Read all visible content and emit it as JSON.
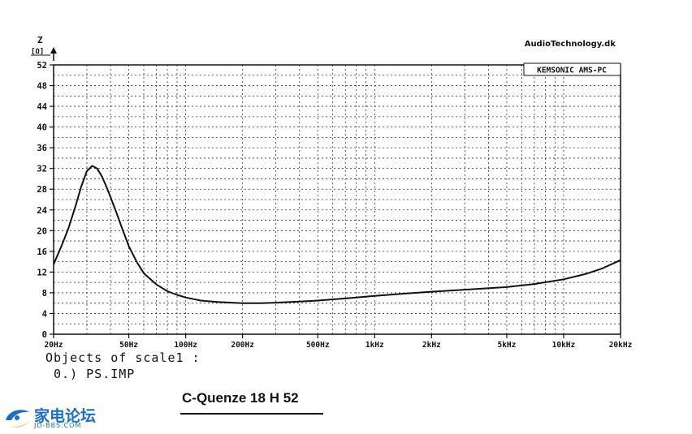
{
  "header": {
    "brand": "AudioTechnology.dk",
    "software_label": "KEMSONIC AMS-PC"
  },
  "chart_data": {
    "type": "line",
    "ylabel": "Z",
    "yunit": "[Ω]",
    "x_scale": "log",
    "xlim": [
      20,
      20000
    ],
    "ylim": [
      0,
      52
    ],
    "grid": true,
    "y_ticks": [
      0,
      4,
      8,
      12,
      16,
      20,
      24,
      28,
      32,
      36,
      40,
      44,
      48,
      52
    ],
    "x_tick_values": [
      20,
      50,
      100,
      200,
      500,
      1000,
      2000,
      5000,
      10000,
      20000
    ],
    "x_tick_labels": [
      "20Hz",
      "50Hz",
      "100Hz",
      "200Hz",
      "500Hz",
      "1kHz",
      "2kHz",
      "5kHz",
      "10kHz",
      "20kHz"
    ],
    "series": [
      {
        "name": "PS.IMP",
        "x": [
          20,
          22,
          24,
          26,
          28,
          30,
          32,
          34,
          36,
          38,
          40,
          43,
          46,
          50,
          55,
          60,
          70,
          80,
          90,
          100,
          120,
          150,
          200,
          250,
          300,
          400,
          500,
          700,
          1000,
          1500,
          2000,
          3000,
          5000,
          7000,
          10000,
          13000,
          16000,
          20000
        ],
        "values": [
          13.5,
          17,
          20.5,
          24.5,
          28.5,
          31.5,
          32.5,
          32,
          30.5,
          28.5,
          26.5,
          23.5,
          20.5,
          17,
          14,
          11.8,
          9.6,
          8.3,
          7.6,
          7.1,
          6.5,
          6.2,
          6.0,
          6.0,
          6.1,
          6.3,
          6.5,
          6.9,
          7.4,
          7.9,
          8.2,
          8.6,
          9.1,
          9.7,
          10.6,
          11.6,
          12.7,
          14.3
        ]
      }
    ]
  },
  "caption": {
    "line1": "Objects of scale1 :",
    "line2": " 0.) PS.IMP"
  },
  "model": {
    "title": "C-Quenze 18 H 52"
  },
  "watermark": {
    "brand": "家电论坛",
    "sub": "JD-BBS.COM"
  },
  "colors": {
    "ink": "#111111",
    "grid": "#333333",
    "watermark": "#1b6fc2"
  }
}
